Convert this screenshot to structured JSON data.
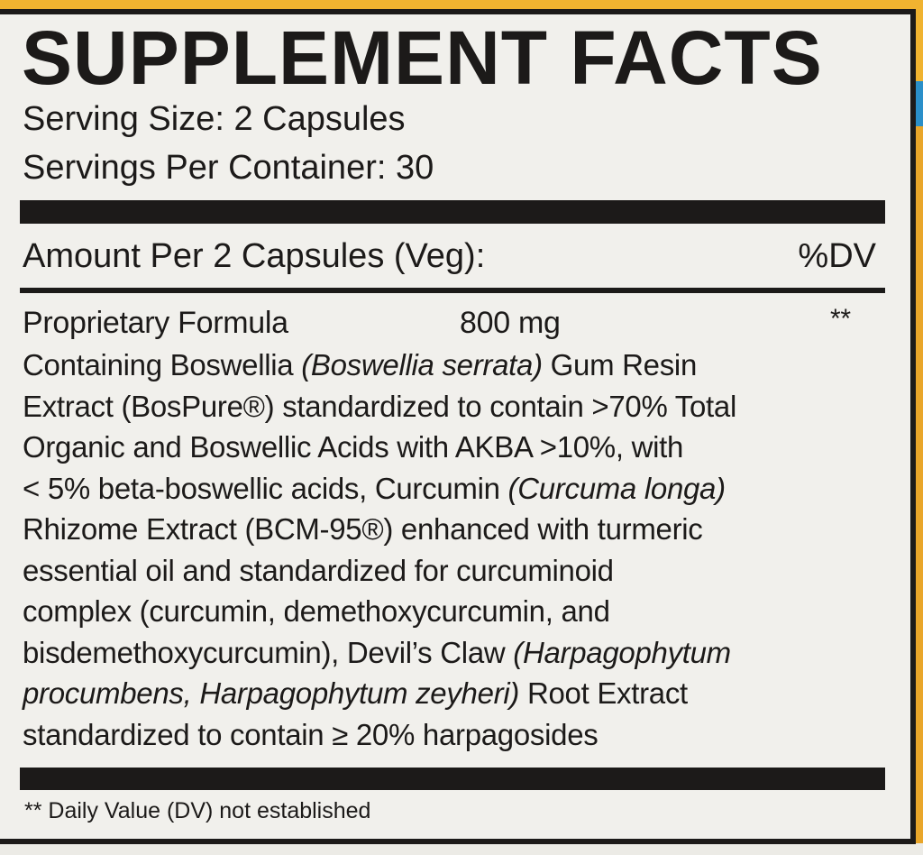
{
  "title": "SUPPLEMENT FACTS",
  "serving_size": "Serving Size: 2 Capsules",
  "servings_per_container": "Servings Per Container: 30",
  "amount_header": {
    "label": "Amount Per 2 Capsules (Veg):",
    "dv_label": "%DV"
  },
  "ingredient": {
    "name": "Proprietary Formula",
    "amount": "800 mg",
    "dv": "**"
  },
  "description_lines": [
    [
      {
        "text": "Containing Boswellia ",
        "italic": false
      },
      {
        "text": "(Boswellia serrata)",
        "italic": true
      },
      {
        "text": " Gum Resin",
        "italic": false
      }
    ],
    [
      {
        "text": "Extract (BosPure®) standardized to contain >70% Total",
        "italic": false
      }
    ],
    [
      {
        "text": "Organic and Boswellic Acids with AKBA >10%, with",
        "italic": false
      }
    ],
    [
      {
        "text": "< 5% beta-boswellic acids, Curcumin ",
        "italic": false
      },
      {
        "text": "(Curcuma longa)",
        "italic": true
      }
    ],
    [
      {
        "text": "Rhizome Extract (BCM-95®) enhanced with turmeric",
        "italic": false
      }
    ],
    [
      {
        "text": "essential oil and standardized for curcuminoid",
        "italic": false
      }
    ],
    [
      {
        "text": "complex (curcumin, demethoxycurcumin, and",
        "italic": false
      }
    ],
    [
      {
        "text": "bisdemethoxycurcumin), Devil’s Claw ",
        "italic": false
      },
      {
        "text": "(Harpagophytum",
        "italic": true
      }
    ],
    [
      {
        "text": "procumbens, Harpagophytum zeyheri)",
        "italic": true
      },
      {
        "text": " Root Extract",
        "italic": false
      }
    ],
    [
      {
        "text": "standardized to contain ≥ 20% harpagosides",
        "italic": false
      }
    ]
  ],
  "footnote": "** Daily Value (DV) not established",
  "colors": {
    "ink": "#1c1a19",
    "label_bg": "#f1f0ec",
    "package_orange": "#f0b330",
    "package_blue": "#2a8fc9"
  }
}
